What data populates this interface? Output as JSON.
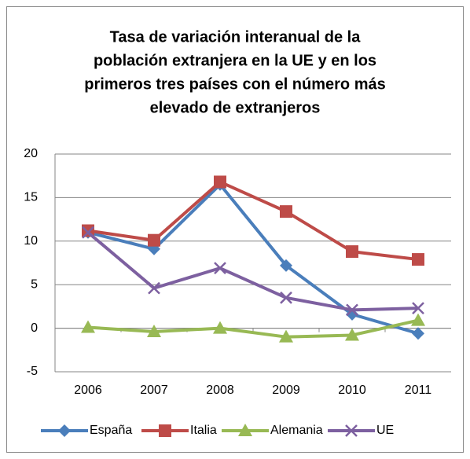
{
  "chart_data": {
    "type": "line",
    "title": [
      "Tasa de variación interanual de la",
      "población extranjera en la UE y en los",
      "primeros tres países con el número más",
      "elevado de extranjeros"
    ],
    "categories": [
      "2006",
      "2007",
      "2008",
      "2009",
      "2010",
      "2011"
    ],
    "series": [
      {
        "name": "España",
        "color": "#4a7ebb",
        "marker": "diamond",
        "values": [
          11.0,
          9.1,
          16.5,
          7.2,
          1.6,
          -0.6
        ]
      },
      {
        "name": "Italia",
        "color": "#be4b48",
        "marker": "square",
        "values": [
          11.2,
          10.1,
          16.8,
          13.4,
          8.8,
          7.9
        ]
      },
      {
        "name": "Alemania",
        "color": "#98b954",
        "marker": "triangle",
        "values": [
          0.1,
          -0.4,
          0.0,
          -1.0,
          -0.8,
          0.9
        ]
      },
      {
        "name": "UE",
        "color": "#7d60a0",
        "marker": "x",
        "values": [
          11.0,
          4.6,
          6.9,
          3.5,
          2.1,
          2.3
        ]
      }
    ],
    "ylim": [
      -5,
      20
    ],
    "yticks": [
      -5,
      0,
      5,
      10,
      15,
      20
    ],
    "grid": true,
    "legend": "bottom"
  }
}
